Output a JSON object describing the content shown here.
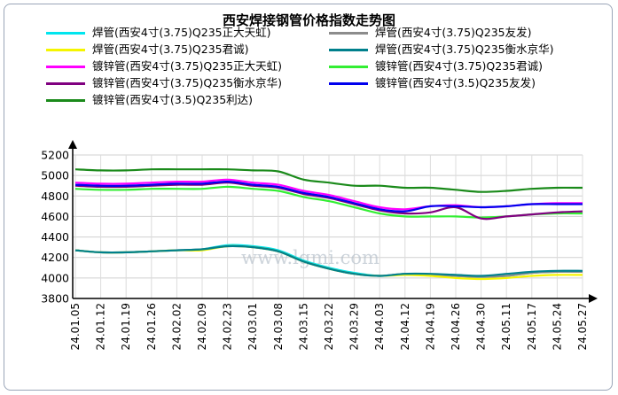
{
  "chart_data": {
    "type": "line",
    "title": "西安焊接钢管价格指数走势图",
    "watermark": "www.lgmi.com",
    "xlabel": "",
    "ylabel": "",
    "ylim": [
      3800,
      5200
    ],
    "yticks": [
      3800,
      4000,
      4200,
      4400,
      4600,
      4800,
      5000,
      5200
    ],
    "grid": true,
    "legend_position": "top",
    "x": [
      "24.01.05",
      "24.01.12",
      "24.01.19",
      "24.01.26",
      "24.02.02",
      "24.02.09",
      "24.02.23",
      "24.03.01",
      "24.03.08",
      "24.03.15",
      "24.03.22",
      "24.03.29",
      "24.04.03",
      "24.04.12",
      "24.04.19",
      "24.04.26",
      "24.04.30",
      "24.05.11",
      "24.05.17",
      "24.05.24",
      "24.05.27"
    ],
    "series": [
      {
        "name": "焊管(西安4寸(3.75)Q235正大天虹)",
        "color": "#00e5ee",
        "values": [
          4270,
          4250,
          4250,
          4260,
          4270,
          4280,
          4320,
          4310,
          4270,
          4170,
          4100,
          4050,
          4020,
          4040,
          4030,
          4020,
          4010,
          4020,
          4050,
          4060,
          4060
        ]
      },
      {
        "name": "焊管(西安4寸(3.75)Q235友发)",
        "color": "#8c8c8c",
        "values": [
          4270,
          4250,
          4250,
          4260,
          4270,
          4280,
          4310,
          4300,
          4260,
          4160,
          4090,
          4040,
          4020,
          4040,
          4030,
          4020,
          4010,
          4020,
          4050,
          4060,
          4060
        ]
      },
      {
        "name": "焊管(西安4寸(3.75)Q235君诚)",
        "color": "#f5f500",
        "values": [
          4270,
          4250,
          4250,
          4260,
          4270,
          4270,
          4310,
          4300,
          4260,
          4160,
          4090,
          4040,
          4020,
          4030,
          4020,
          4000,
          3990,
          4000,
          4020,
          4030,
          4030
        ]
      },
      {
        "name": "焊管(西安4寸(3.75)Q235衡水京华)",
        "color": "#00808c",
        "values": [
          4270,
          4250,
          4250,
          4260,
          4270,
          4280,
          4310,
          4300,
          4260,
          4160,
          4090,
          4040,
          4020,
          4040,
          4040,
          4030,
          4020,
          4040,
          4060,
          4070,
          4070
        ]
      },
      {
        "name": "镀锌管(西安4寸(3.75)Q235正大天虹)",
        "color": "#ff00ff",
        "values": [
          4930,
          4920,
          4920,
          4930,
          4940,
          4940,
          4960,
          4930,
          4910,
          4850,
          4810,
          4750,
          4690,
          4670,
          4700,
          4710,
          4690,
          4700,
          4720,
          4730,
          4730
        ]
      },
      {
        "name": "镀锌管(西安4寸(3.75)Q235君诚)",
        "color": "#33ee33",
        "values": [
          4870,
          4860,
          4860,
          4870,
          4870,
          4870,
          4890,
          4870,
          4850,
          4790,
          4750,
          4690,
          4630,
          4600,
          4600,
          4600,
          4590,
          4600,
          4620,
          4630,
          4630
        ]
      },
      {
        "name": "镀锌管(西安4寸(3.75)Q235衡水京华)",
        "color": "#800080",
        "values": [
          4900,
          4890,
          4890,
          4900,
          4910,
          4910,
          4930,
          4900,
          4880,
          4820,
          4780,
          4720,
          4660,
          4630,
          4640,
          4690,
          4580,
          4600,
          4620,
          4640,
          4650
        ]
      },
      {
        "name": "镀锌管(西安4寸(3.5)Q235友发)",
        "color": "#0000ee",
        "values": [
          4910,
          4900,
          4900,
          4910,
          4920,
          4920,
          4940,
          4910,
          4890,
          4830,
          4790,
          4730,
          4670,
          4650,
          4700,
          4700,
          4690,
          4700,
          4720,
          4720,
          4720
        ]
      },
      {
        "name": "镀锌管(西安4寸(3.5)Q235利达)",
        "color": "#1a8a1a",
        "values": [
          5060,
          5050,
          5050,
          5060,
          5060,
          5060,
          5060,
          5050,
          5040,
          4960,
          4930,
          4900,
          4900,
          4880,
          4880,
          4860,
          4840,
          4850,
          4870,
          4880,
          4880
        ]
      }
    ]
  }
}
